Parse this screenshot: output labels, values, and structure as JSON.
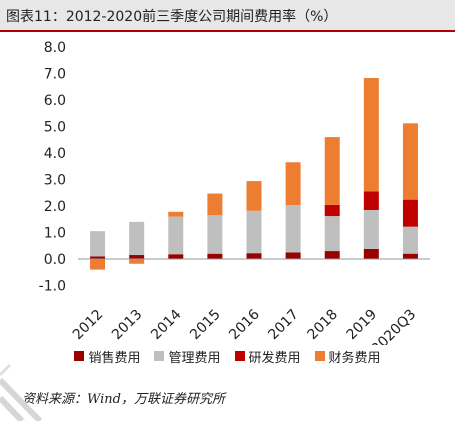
{
  "title": "图表11：2012-2020前三季度公司期间费用率（%）",
  "source": "资料来源：Wind，万联证券研究所",
  "chart_data": {
    "type": "bar",
    "stacked": true,
    "categories": [
      "2012",
      "2013",
      "2014",
      "2015",
      "2016",
      "2017",
      "2018",
      "2019",
      "2020Q3"
    ],
    "ylim": [
      -1.0,
      8.0
    ],
    "yticks": [
      "8.0",
      "7.0",
      "6.0",
      "5.0",
      "4.0",
      "3.0",
      "2.0",
      "1.0",
      "0.0",
      "-1.0"
    ],
    "series": [
      {
        "name": "销售费用",
        "color": "#990000",
        "values": [
          0.1,
          0.15,
          0.18,
          0.2,
          0.22,
          0.25,
          0.3,
          0.38,
          0.2
        ]
      },
      {
        "name": "管理费用",
        "color": "#bfbfbf",
        "values": [
          0.95,
          1.25,
          1.42,
          1.45,
          1.6,
          1.78,
          1.32,
          1.47,
          1.02
        ]
      },
      {
        "name": "研发费用",
        "color": "#c00000",
        "values": [
          0.0,
          0.0,
          0.0,
          0.0,
          0.0,
          0.0,
          0.42,
          0.7,
          1.02
        ]
      },
      {
        "name": "财务费用",
        "color": "#ed7d31",
        "values": [
          -0.4,
          -0.18,
          0.18,
          0.82,
          1.12,
          1.62,
          2.56,
          4.28,
          2.88
        ]
      }
    ],
    "grid": false,
    "legend": "bottom"
  }
}
